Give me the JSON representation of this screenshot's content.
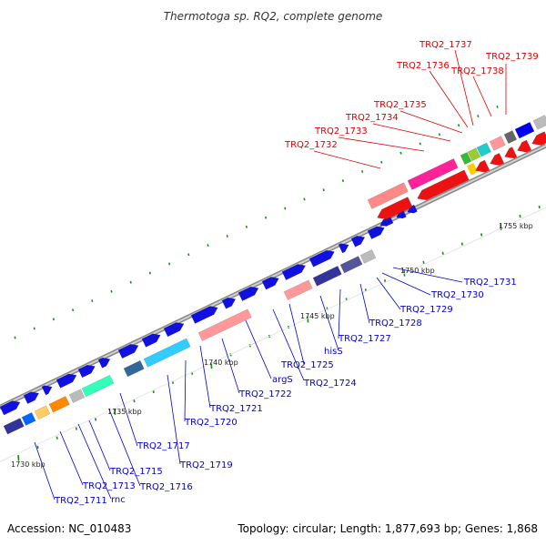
{
  "title": "Thermotoga sp. RQ2, complete genome",
  "footer": {
    "accession": "Accession: NC_010483",
    "summary": "Topology: circular; Length: 1,877,693 bp; Genes: 1,868"
  },
  "colors": {
    "forward_strand": "#1010e0",
    "reverse_strand": "#ee1111",
    "label_blue": "#0000cc",
    "label_red": "#dd0000",
    "tick": "#1a8a1a",
    "backbone": "#999999"
  },
  "scale_labels": [
    "1730 kbp",
    "1735 kbp",
    "1740 kbp",
    "1745 kbp",
    "1750 kbp",
    "1755 kbp"
  ],
  "red_labels": [
    "TRQ2_1737",
    "TRQ2_1736",
    "TRQ2_1738",
    "TRQ2_1739",
    "TRQ2_1735",
    "TRQ2_1734",
    "TRQ2_1733",
    "TRQ2_1732"
  ],
  "blue_labels": [
    "TRQ2_1731",
    "TRQ2_1730",
    "TRQ2_1729",
    "TRQ2_1728",
    "TRQ2_1727",
    "hisS",
    "TRQ2_1725",
    "TRQ2_1724",
    "argS",
    "TRQ2_1722",
    "TRQ2_1721",
    "TRQ2_1720",
    "TRQ2_1719",
    "TRQ2_1717",
    "TRQ2_1716",
    "TRQ2_1715",
    "rnc",
    "TRQ2_1713",
    "TRQ2_1711"
  ]
}
